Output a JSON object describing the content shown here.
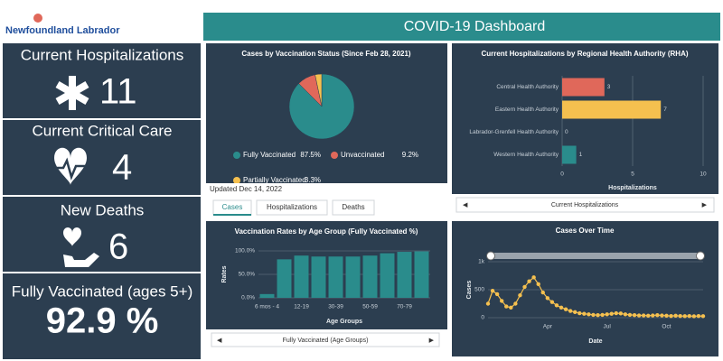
{
  "header": {
    "logo": "Newfoundland Labrador",
    "title": "COVID-19 Dashboard"
  },
  "kpis": [
    {
      "label": "Current Hospitalizations",
      "value": 11
    },
    {
      "label": "Current Critical Care",
      "value": 4
    },
    {
      "label": "New Deaths",
      "value": 6
    },
    {
      "label": "Fully Vaccinated (ages 5+)",
      "value": "92.9 %"
    }
  ],
  "updated": "Updated Dec 14, 2022",
  "tabs": [
    "Cases",
    "Hospitalizations",
    "Deaths"
  ],
  "chart_data": [
    {
      "type": "pie",
      "title": "Cases by Vaccination Status (Since Feb 28, 2021)",
      "categories": [
        "Fully Vaccinated",
        "Unvaccinated",
        "Partially Vaccinated"
      ],
      "values": [
        87.5,
        9.2,
        3.3
      ],
      "value_labels": [
        "87.5%",
        "9.2%",
        "3.3%"
      ],
      "colors": [
        "#2a8c8c",
        "#e0685a",
        "#f5c04f"
      ]
    },
    {
      "type": "hbar",
      "title": "Current Hospitalizations by Regional Health Authority (RHA)",
      "categories": [
        "Central Health Authority",
        "Eastern Health Authority",
        "Labrador-Grenfell Health Authority",
        "Western Health Authority"
      ],
      "values": [
        3,
        7,
        0,
        1
      ],
      "colors": [
        "#e0685a",
        "#f5c04f",
        "#2a8c8c",
        "#2a8c8c"
      ],
      "xlim": [
        0,
        10
      ],
      "xticks": [
        0,
        5,
        10
      ],
      "xlabel": "Hospitalizations",
      "selector": "Current Hospitalizations"
    },
    {
      "type": "bar",
      "title": "Vaccination Rates by Age Group (Fully Vaccinated %)",
      "categories": [
        "6 mos - 4",
        null,
        "12-19",
        null,
        "30-39",
        null,
        "50-59",
        null,
        "70-79",
        null
      ],
      "values": [
        8,
        82,
        90,
        88,
        88,
        88,
        90,
        95,
        98,
        99
      ],
      "color": "#2a8c8c",
      "ylim": [
        0,
        100
      ],
      "yticks": [
        {
          "value": 0,
          "label": "0.0%"
        },
        {
          "value": 50,
          "label": "50.0%"
        },
        {
          "value": 100,
          "label": "100.0%"
        }
      ],
      "xlabel": "Age Groups",
      "ylabel": "Rates",
      "grid": true,
      "selector": "Fully Vaccinated (Age Groups)"
    },
    {
      "type": "line",
      "title": "Cases Over Time",
      "categories": [
        null,
        null,
        null,
        null,
        null,
        null,
        null,
        null,
        null,
        null,
        null,
        null,
        null,
        "Apr",
        null,
        null,
        null,
        null,
        null,
        null,
        null,
        null,
        null,
        null,
        null,
        null,
        "Jul",
        null,
        null,
        null,
        null,
        null,
        null,
        null,
        null,
        null,
        null,
        null,
        null,
        "Oct",
        null,
        null,
        null,
        null,
        null,
        null,
        null,
        null
      ],
      "values": [
        250,
        480,
        420,
        300,
        200,
        180,
        250,
        400,
        550,
        650,
        720,
        600,
        450,
        350,
        280,
        220,
        180,
        150,
        120,
        100,
        80,
        70,
        60,
        50,
        45,
        50,
        60,
        70,
        80,
        75,
        60,
        50,
        45,
        40,
        40,
        35,
        40,
        45,
        40,
        35,
        30,
        35,
        30,
        28,
        30,
        25,
        30,
        28
      ],
      "color": "#f5c04f",
      "ylim": [
        0,
        1000
      ],
      "yticks": [
        0,
        500,
        {
          "value": 1000,
          "label": "1k"
        }
      ],
      "xlabel": "Date",
      "ylabel": "Cases",
      "grid": true
    }
  ]
}
